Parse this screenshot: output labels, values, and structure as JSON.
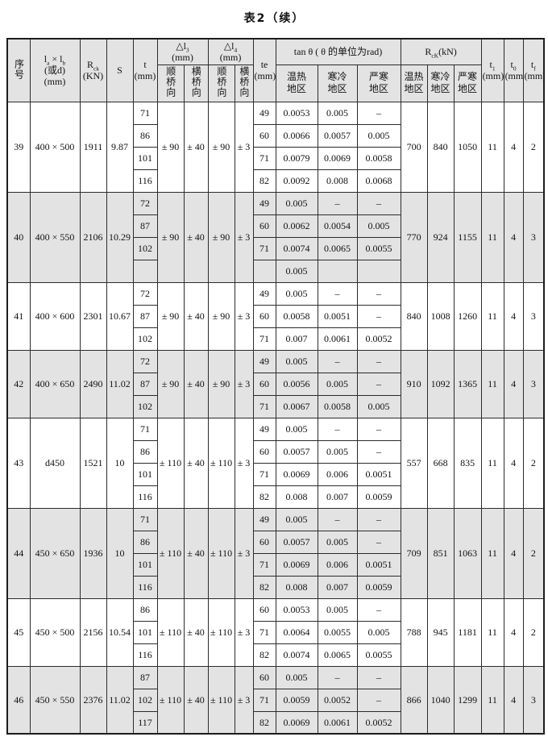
{
  "title": "表2（续）",
  "header": {
    "serial": "序号",
    "dims": {
      "base1": "l",
      "sub1": "a",
      "mid": " × l",
      "sub2": "b",
      "line2": "(或d)",
      "line3": "(mm)"
    },
    "rck": {
      "base": "R",
      "sub": "ck",
      "line2": "(KN)"
    },
    "s": "S",
    "t": {
      "line1": "t",
      "line2": "(mm)"
    },
    "dl3": {
      "base": "△l",
      "sub": "3",
      "unit": "(mm)",
      "along": "顺桥向",
      "across": "横桥向"
    },
    "dl4": {
      "base": "△l",
      "sub": "4",
      "unit": "(mm)",
      "along": "顺桥向",
      "across": "横桥向"
    },
    "te": {
      "line1": "te",
      "line2": "(mm)"
    },
    "tan": {
      "title": "tan θ ( θ 的单位为rad)",
      "zone1": "温热地区",
      "zone2": "寒冷地区",
      "zone3": "严寒地区"
    },
    "rcx": {
      "base": "R",
      "sub": "cK",
      "unit": "(kN)",
      "zone1": "温热地区",
      "zone2": "寒冷地区",
      "zone3": "严寒地区"
    },
    "t1": {
      "base": "t",
      "sub": "1",
      "line2": "(mm)"
    },
    "t0": {
      "base": "t",
      "sub": "0",
      "line2": "(mm)"
    },
    "tf": {
      "base": "t",
      "sub": "f",
      "line2": "(mm)"
    }
  },
  "rows": [
    {
      "no": "39",
      "dims": "400 × 500",
      "rck": "1911",
      "s": "9.87",
      "dl3_along": "± 90",
      "dl3_across": "± 40",
      "dl4_along": "± 90",
      "dl4_across": "± 3",
      "subs": [
        {
          "t": "71",
          "te": "49",
          "tan": [
            "0.0053",
            "0.005",
            "–"
          ]
        },
        {
          "t": "86",
          "te": "60",
          "tan": [
            "0.0066",
            "0.0057",
            "0.005"
          ]
        },
        {
          "t": "101",
          "te": "71",
          "tan": [
            "0.0079",
            "0.0069",
            "0.0058"
          ]
        },
        {
          "t": "116",
          "te": "82",
          "tan": [
            "0.0092",
            "0.008",
            "0.0068"
          ]
        }
      ],
      "r": [
        "700",
        "840",
        "1050"
      ],
      "t1": "11",
      "t0": "4",
      "tf": "2",
      "shaded": false
    },
    {
      "no": "40",
      "dims": "400 × 550",
      "rck": "2106",
      "s": "10.29",
      "dl3_along": "± 90",
      "dl3_across": "± 40",
      "dl4_along": "± 90",
      "dl4_across": "± 3",
      "subs": [
        {
          "t": "72",
          "te": "49",
          "tan": [
            "0.005",
            "–",
            "–"
          ]
        },
        {
          "t": "87",
          "te": "60",
          "tan": [
            "0.0062",
            "0.0054",
            "0.005"
          ]
        },
        {
          "t": "102",
          "te": "71",
          "tan": [
            "0.0074",
            "0.0065",
            "0.0055"
          ]
        },
        {
          "t": "",
          "te": "",
          "tan": [
            "0.005",
            "",
            ""
          ]
        }
      ],
      "r": [
        "770",
        "924",
        "1155"
      ],
      "t1": "11",
      "t0": "4",
      "tf": "3",
      "shaded": true
    },
    {
      "no": "41",
      "dims": "400 × 600",
      "rck": "2301",
      "s": "10.67",
      "dl3_along": "± 90",
      "dl3_across": "± 40",
      "dl4_along": "± 90",
      "dl4_across": "± 3",
      "subs": [
        {
          "t": "72",
          "te": "49",
          "tan": [
            "0.005",
            "–",
            "–"
          ]
        },
        {
          "t": "87",
          "te": "60",
          "tan": [
            "0.0058",
            "0.0051",
            "–"
          ]
        },
        {
          "t": "102",
          "te": "71",
          "tan": [
            "0.007",
            "0.0061",
            "0.0052"
          ]
        }
      ],
      "r": [
        "840",
        "1008",
        "1260"
      ],
      "t1": "11",
      "t0": "4",
      "tf": "3",
      "shaded": false
    },
    {
      "no": "42",
      "dims": "400 × 650",
      "rck": "2490",
      "s": "11.02",
      "dl3_along": "± 90",
      "dl3_across": "± 40",
      "dl4_along": "± 90",
      "dl4_across": "± 3",
      "subs": [
        {
          "t": "72",
          "te": "49",
          "tan": [
            "0.005",
            "–",
            "–"
          ]
        },
        {
          "t": "87",
          "te": "60",
          "tan": [
            "0.0056",
            "0.005",
            "–"
          ]
        },
        {
          "t": "102",
          "te": "71",
          "tan": [
            "0.0067",
            "0.0058",
            "0.005"
          ]
        }
      ],
      "r": [
        "910",
        "1092",
        "1365"
      ],
      "t1": "11",
      "t0": "4",
      "tf": "3",
      "shaded": true
    },
    {
      "no": "43",
      "dims": "d450",
      "rck": "1521",
      "s": "10",
      "dl3_along": "± 110",
      "dl3_across": "± 40",
      "dl4_along": "± 110",
      "dl4_across": "± 3",
      "subs": [
        {
          "t": "71",
          "te": "49",
          "tan": [
            "0.005",
            "–",
            "–"
          ]
        },
        {
          "t": "86",
          "te": "60",
          "tan": [
            "0.0057",
            "0.005",
            "–"
          ]
        },
        {
          "t": "101",
          "te": "71",
          "tan": [
            "0.0069",
            "0.006",
            "0.0051"
          ]
        },
        {
          "t": "116",
          "te": "82",
          "tan": [
            "0.008",
            "0.007",
            "0.0059"
          ]
        }
      ],
      "r": [
        "557",
        "668",
        "835"
      ],
      "t1": "11",
      "t0": "4",
      "tf": "2",
      "shaded": false
    },
    {
      "no": "44",
      "dims": "450 × 650",
      "rck": "1936",
      "s": "10",
      "dl3_along": "± 110",
      "dl3_across": "± 40",
      "dl4_along": "± 110",
      "dl4_across": "± 3",
      "subs": [
        {
          "t": "71",
          "te": "49",
          "tan": [
            "0.005",
            "–",
            "–"
          ]
        },
        {
          "t": "86",
          "te": "60",
          "tan": [
            "0.0057",
            "0.005",
            "–"
          ]
        },
        {
          "t": "101",
          "te": "71",
          "tan": [
            "0.0069",
            "0.006",
            "0.0051"
          ]
        },
        {
          "t": "116",
          "te": "82",
          "tan": [
            "0.008",
            "0.007",
            "0.0059"
          ]
        }
      ],
      "r": [
        "709",
        "851",
        "1063"
      ],
      "t1": "11",
      "t0": "4",
      "tf": "2",
      "shaded": true
    },
    {
      "no": "45",
      "dims": "450 × 500",
      "rck": "2156",
      "s": "10.54",
      "dl3_along": "± 110",
      "dl3_across": "± 40",
      "dl4_along": "± 110",
      "dl4_across": "± 3",
      "subs": [
        {
          "t": "86",
          "te": "60",
          "tan": [
            "0.0053",
            "0.005",
            "–"
          ]
        },
        {
          "t": "101",
          "te": "71",
          "tan": [
            "0.0064",
            "0.0055",
            "0.005"
          ]
        },
        {
          "t": "116",
          "te": "82",
          "tan": [
            "0.0074",
            "0.0065",
            "0.0055"
          ]
        }
      ],
      "r": [
        "788",
        "945",
        "1181"
      ],
      "t1": "11",
      "t0": "4",
      "tf": "2",
      "shaded": false
    },
    {
      "no": "46",
      "dims": "450 × 550",
      "rck": "2376",
      "s": "11.02",
      "dl3_along": "± 110",
      "dl3_across": "± 40",
      "dl4_along": "± 110",
      "dl4_across": "± 3",
      "subs": [
        {
          "t": "87",
          "te": "60",
          "tan": [
            "0.005",
            "–",
            "–"
          ]
        },
        {
          "t": "102",
          "te": "71",
          "tan": [
            "0.0059",
            "0.0052",
            "–"
          ]
        },
        {
          "t": "117",
          "te": "82",
          "tan": [
            "0.0069",
            "0.0061",
            "0.0052"
          ]
        }
      ],
      "r": [
        "866",
        "1040",
        "1299"
      ],
      "t1": "11",
      "t0": "4",
      "tf": "3",
      "shaded": true
    }
  ]
}
